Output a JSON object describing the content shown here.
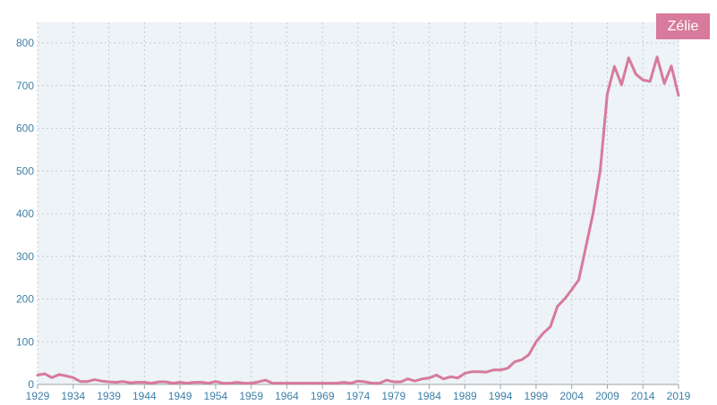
{
  "chart_data": {
    "type": "line",
    "title": "",
    "xlabel": "",
    "ylabel": "",
    "xlim": [
      1929,
      2019
    ],
    "ylim": [
      0,
      800
    ],
    "yticks": [
      0,
      100,
      200,
      300,
      400,
      500,
      600,
      700,
      800
    ],
    "xticks": [
      1929,
      1934,
      1939,
      1944,
      1949,
      1954,
      1959,
      1964,
      1969,
      1974,
      1979,
      1984,
      1989,
      1994,
      1999,
      2004,
      2009,
      2014,
      2019
    ],
    "grid": true,
    "legend_position": "top-right",
    "colors": {
      "plot_background": "#edf3f7",
      "line": "#d77a9b",
      "grid": "#c4ccd2",
      "tick_text": "#3d7fa8"
    },
    "series": [
      {
        "name": "Zélie",
        "x": [
          1929,
          1930,
          1931,
          1932,
          1933,
          1934,
          1935,
          1936,
          1937,
          1938,
          1939,
          1940,
          1941,
          1942,
          1943,
          1944,
          1945,
          1946,
          1947,
          1948,
          1949,
          1950,
          1951,
          1952,
          1953,
          1954,
          1955,
          1956,
          1957,
          1958,
          1959,
          1960,
          1961,
          1962,
          1963,
          1964,
          1965,
          1966,
          1967,
          1968,
          1969,
          1970,
          1971,
          1972,
          1973,
          1974,
          1975,
          1976,
          1977,
          1978,
          1979,
          1980,
          1981,
          1982,
          1983,
          1984,
          1985,
          1986,
          1987,
          1988,
          1989,
          1990,
          1991,
          1992,
          1993,
          1994,
          1995,
          1996,
          1997,
          1998,
          1999,
          2000,
          2001,
          2002,
          2003,
          2004,
          2005,
          2006,
          2007,
          2008,
          2009,
          2010,
          2011,
          2012,
          2013,
          2014,
          2015,
          2016,
          2017,
          2018,
          2019
        ],
        "values": [
          22,
          25,
          16,
          23,
          20,
          16,
          7,
          7,
          11,
          8,
          6,
          5,
          7,
          4,
          5,
          5,
          3,
          6,
          6,
          3,
          5,
          3,
          5,
          5,
          3,
          7,
          3,
          3,
          5,
          3,
          3,
          6,
          10,
          3,
          3,
          3,
          3,
          3,
          3,
          3,
          3,
          3,
          3,
          5,
          3,
          8,
          6,
          3,
          3,
          10,
          6,
          6,
          13,
          8,
          13,
          15,
          22,
          13,
          18,
          15,
          26,
          30,
          30,
          29,
          34,
          34,
          38,
          53,
          58,
          70,
          100,
          120,
          135,
          183,
          200,
          222,
          245,
          323,
          400,
          500,
          680,
          745,
          702,
          765,
          727,
          713,
          710,
          767,
          705,
          746,
          677
        ]
      }
    ]
  }
}
